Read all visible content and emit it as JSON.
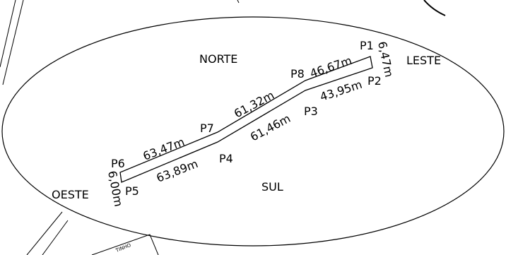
{
  "directions": {
    "north": "NORTE",
    "south": "SUL",
    "east": "LESTE",
    "west": "OESTE"
  },
  "points": {
    "p1": "P1",
    "p2": "P2",
    "p3": "P3",
    "p4": "P4",
    "p5": "P5",
    "p6": "P6",
    "p7": "P7",
    "p8": "P8"
  },
  "segments": {
    "p1_p2": "6,47m",
    "p2_p3": "43,95m",
    "p3_p4": "61,46m",
    "p4_p5": "63,89m",
    "p5_p6": "6,00m",
    "p6_p7": "63,47m",
    "p7_p8": "61,32m",
    "p8_p1": "46,67m"
  },
  "street_label": "TINHO"
}
